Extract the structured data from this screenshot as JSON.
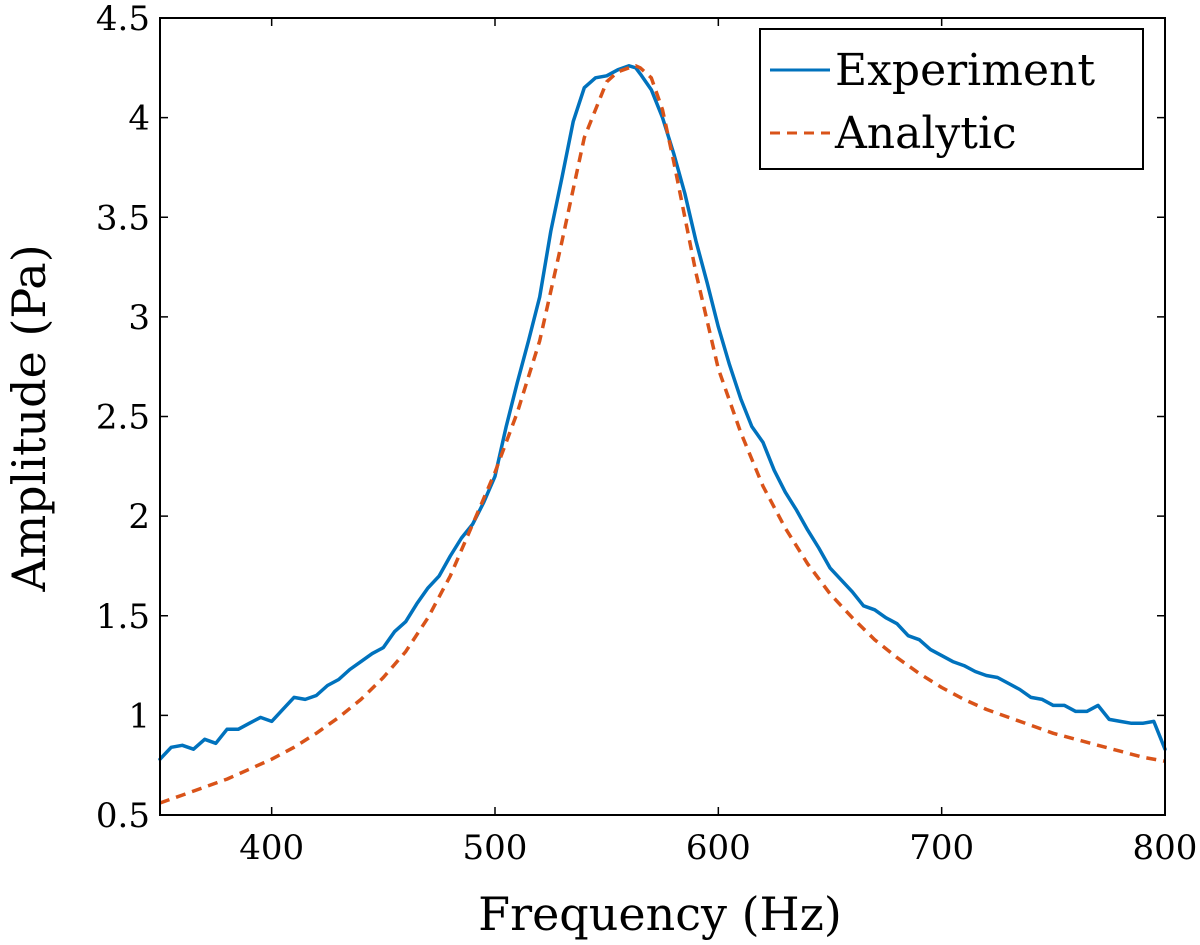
{
  "chart_data": {
    "type": "line",
    "title": "",
    "xlabel": "Frequency (Hz)",
    "ylabel": "Amplitude (Pa)",
    "xlim": [
      350,
      800
    ],
    "ylim": [
      0.5,
      4.5
    ],
    "xticks": [
      400,
      500,
      600,
      700,
      800
    ],
    "xtick_labels": [
      "400",
      "500",
      "600",
      "700",
      "800"
    ],
    "yticks": [
      0.5,
      1,
      1.5,
      2,
      2.5,
      3,
      3.5,
      4,
      4.5
    ],
    "ytick_labels": [
      "0.5",
      "1",
      "1.5",
      "2",
      "2.5",
      "3",
      "3.5",
      "4",
      "4.5"
    ],
    "grid": false,
    "legend_position": "top-right",
    "series": [
      {
        "name": "Experiment",
        "style": "solid",
        "color": "#0072BD",
        "x": [
          350,
          355,
          360,
          365,
          370,
          375,
          380,
          385,
          390,
          395,
          400,
          405,
          410,
          415,
          420,
          425,
          430,
          435,
          440,
          445,
          450,
          455,
          460,
          465,
          470,
          475,
          480,
          485,
          490,
          495,
          500,
          505,
          510,
          515,
          520,
          525,
          530,
          535,
          540,
          545,
          550,
          555,
          560,
          563,
          565,
          570,
          575,
          580,
          585,
          590,
          595,
          600,
          605,
          610,
          615,
          620,
          625,
          630,
          635,
          640,
          645,
          650,
          655,
          660,
          665,
          670,
          675,
          680,
          685,
          690,
          695,
          700,
          705,
          710,
          715,
          720,
          725,
          730,
          735,
          740,
          745,
          750,
          755,
          760,
          765,
          770,
          775,
          780,
          785,
          790,
          795,
          800
        ],
        "y": [
          0.78,
          0.84,
          0.85,
          0.83,
          0.88,
          0.86,
          0.93,
          0.93,
          0.96,
          0.99,
          0.97,
          1.03,
          1.09,
          1.08,
          1.1,
          1.15,
          1.18,
          1.23,
          1.27,
          1.31,
          1.34,
          1.42,
          1.47,
          1.56,
          1.64,
          1.7,
          1.8,
          1.89,
          1.96,
          2.07,
          2.2,
          2.45,
          2.67,
          2.88,
          3.1,
          3.43,
          3.7,
          3.98,
          4.15,
          4.2,
          4.21,
          4.24,
          4.26,
          4.25,
          4.22,
          4.14,
          4.0,
          3.82,
          3.62,
          3.38,
          3.17,
          2.95,
          2.76,
          2.59,
          2.45,
          2.37,
          2.23,
          2.12,
          2.03,
          1.93,
          1.84,
          1.74,
          1.68,
          1.62,
          1.55,
          1.53,
          1.49,
          1.46,
          1.4,
          1.38,
          1.33,
          1.3,
          1.27,
          1.25,
          1.22,
          1.2,
          1.19,
          1.16,
          1.13,
          1.09,
          1.08,
          1.05,
          1.05,
          1.02,
          1.02,
          1.05,
          0.98,
          0.97,
          0.96,
          0.96,
          0.97,
          0.83
        ]
      },
      {
        "name": "Analytic",
        "style": "dashed",
        "color": "#D95319",
        "x": [
          350,
          360,
          370,
          380,
          390,
          400,
          410,
          420,
          430,
          440,
          450,
          460,
          470,
          480,
          490,
          500,
          510,
          520,
          530,
          540,
          550,
          555,
          560,
          563,
          565,
          570,
          575,
          580,
          590,
          600,
          610,
          620,
          630,
          640,
          650,
          660,
          670,
          680,
          690,
          700,
          710,
          720,
          730,
          740,
          750,
          760,
          770,
          780,
          790,
          800
        ],
        "y": [
          0.56,
          0.6,
          0.64,
          0.68,
          0.73,
          0.78,
          0.84,
          0.91,
          0.99,
          1.08,
          1.19,
          1.32,
          1.49,
          1.7,
          1.96,
          2.22,
          2.52,
          2.88,
          3.38,
          3.9,
          4.18,
          4.23,
          4.25,
          4.26,
          4.25,
          4.2,
          4.04,
          3.78,
          3.22,
          2.74,
          2.42,
          2.15,
          1.94,
          1.76,
          1.61,
          1.49,
          1.38,
          1.29,
          1.21,
          1.14,
          1.08,
          1.03,
          0.99,
          0.95,
          0.91,
          0.88,
          0.85,
          0.82,
          0.79,
          0.77
        ]
      }
    ]
  }
}
